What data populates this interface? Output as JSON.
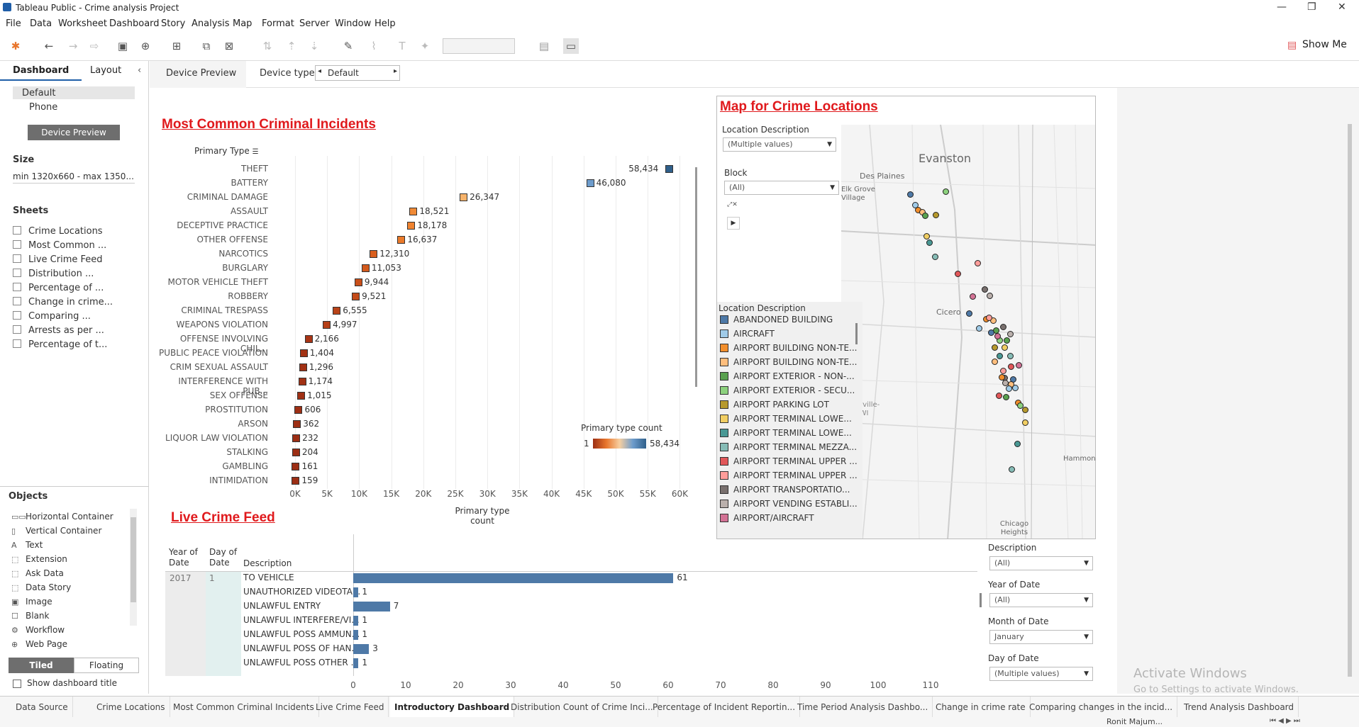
{
  "window": {
    "title": "Tableau Public - Crime analysis Project"
  },
  "menu": [
    "File",
    "Data",
    "Worksheet",
    "Dashboard",
    "Story",
    "Analysis",
    "Map",
    "Format",
    "Server",
    "Window",
    "Help"
  ],
  "toolbar": {
    "show_me": "Show Me"
  },
  "left": {
    "tab_dashboard": "Dashboard",
    "tab_layout": "Layout",
    "devices": [
      "Default",
      "Phone"
    ],
    "device_preview_btn": "Device Preview",
    "size_head": "Size",
    "size_value": "min 1320x660 - max 1350...",
    "sheets_head": "Sheets",
    "sheets": [
      "Crime Locations",
      "Most Common ...",
      "Live Crime Feed",
      "Distribution ...",
      "Percentage of ...",
      "Change in crime...",
      "Comparing ...",
      "Arrests as per ...",
      "Percentage of t..."
    ],
    "objects_head": "Objects",
    "objects": [
      "Horizontal Container",
      "Vertical Container",
      "Text",
      "Extension",
      "Ask Data",
      "Data Story",
      "Image",
      "Blank",
      "Workflow",
      "Web Page"
    ],
    "tiled": "Tiled",
    "floating": "Floating",
    "show_title": "Show dashboard title"
  },
  "canvasbar": {
    "device_preview": "Device Preview",
    "device_type_label": "Device type",
    "device_type_value": "Default"
  },
  "chart_data": {
    "type": "bar",
    "title": "Most Common Criminal Incidents",
    "header": "Primary Type",
    "xlabel": "Primary type count",
    "xlim": [
      0,
      63000
    ],
    "xticks": [
      "0K",
      "5K",
      "10K",
      "15K",
      "20K",
      "25K",
      "30K",
      "35K",
      "40K",
      "45K",
      "50K",
      "55K",
      "60K"
    ],
    "categories": [
      "THEFT",
      "BATTERY",
      "CRIMINAL DAMAGE",
      "ASSAULT",
      "DECEPTIVE PRACTICE",
      "OTHER OFFENSE",
      "NARCOTICS",
      "BURGLARY",
      "MOTOR VEHICLE THEFT",
      "ROBBERY",
      "CRIMINAL TRESPASS",
      "WEAPONS VIOLATION",
      "OFFENSE INVOLVING CHIL...",
      "PUBLIC PEACE VIOLATION",
      "CRIM SEXUAL ASSAULT",
      "INTERFERENCE WITH PUB...",
      "SEX OFFENSE",
      "PROSTITUTION",
      "ARSON",
      "LIQUOR LAW VIOLATION",
      "STALKING",
      "GAMBLING",
      "INTIMIDATION"
    ],
    "values": [
      58434,
      46080,
      26347,
      18521,
      18178,
      16637,
      12310,
      11053,
      9944,
      9521,
      6555,
      4997,
      2166,
      1404,
      1296,
      1174,
      1015,
      606,
      362,
      232,
      204,
      161,
      159
    ],
    "labels": [
      "58,434",
      "46,080",
      "26,347",
      "18,521",
      "18,178",
      "16,637",
      "12,310",
      "11,053",
      "9,944",
      "9,521",
      "6,555",
      "4,997",
      "2,166",
      "1,404",
      "1,296",
      "1,174",
      "1,015",
      "606",
      "362",
      "232",
      "204",
      "161",
      "159"
    ],
    "colors": [
      "#2f5f8a",
      "#6d9ccc",
      "#f7b36b",
      "#f08a36",
      "#ef8330",
      "#ea7a2a",
      "#d95f1e",
      "#d35a1c",
      "#c84f1a",
      "#c44b19",
      "#b94318",
      "#b53f17",
      "#a83515",
      "#a33214",
      "#a23114",
      "#a13114",
      "#a03014",
      "#9e2f14",
      "#9d2f14",
      "#9c2e14",
      "#9c2e14",
      "#9c2e14",
      "#9c2e14"
    ],
    "legend": {
      "title": "Primary type count",
      "min": "1",
      "max": "58,434"
    }
  },
  "map": {
    "title": "Map for Crime Locations",
    "loc_desc_label": "Location Description",
    "loc_desc_value": "(Multiple values)",
    "block_label": "Block",
    "block_value": "(All)",
    "places": [
      "Evanston",
      "Des Plaines",
      "Elk Grove Village",
      "Cicero",
      "Naperville-IL-IN-WI",
      "Hammond",
      "Chicago Heights"
    ],
    "legend_title": "Location Description",
    "legend": [
      {
        "label": "ABANDONED BUILDING",
        "color": "#4e79a7"
      },
      {
        "label": "AIRCRAFT",
        "color": "#a0cbe8"
      },
      {
        "label": "AIRPORT BUILDING NON-TE...",
        "color": "#f28e2b"
      },
      {
        "label": "AIRPORT BUILDING NON-TE...",
        "color": "#ffbe7d"
      },
      {
        "label": "AIRPORT EXTERIOR - NON-...",
        "color": "#59a14f"
      },
      {
        "label": "AIRPORT EXTERIOR - SECU...",
        "color": "#8cd17d"
      },
      {
        "label": "AIRPORT PARKING LOT",
        "color": "#b6992d"
      },
      {
        "label": "AIRPORT TERMINAL LOWE...",
        "color": "#f1ce63"
      },
      {
        "label": "AIRPORT TERMINAL LOWE...",
        "color": "#499894"
      },
      {
        "label": "AIRPORT TERMINAL MEZZA...",
        "color": "#86bcb6"
      },
      {
        "label": "AIRPORT TERMINAL UPPER ...",
        "color": "#e15759"
      },
      {
        "label": "AIRPORT TERMINAL UPPER ...",
        "color": "#ff9d9a"
      },
      {
        "label": "AIRPORT TRANSPORTATIO...",
        "color": "#79706e"
      },
      {
        "label": "AIRPORT VENDING ESTABLI...",
        "color": "#bab0ac"
      },
      {
        "label": "AIRPORT/AIRCRAFT",
        "color": "#d37295"
      }
    ]
  },
  "feed": {
    "title": "Live Crime Feed",
    "col_year": "Year of Date",
    "col_day": "Day of Date",
    "col_desc": "Description",
    "year": "2017",
    "day": "1",
    "rows": [
      {
        "desc": "TO VEHICLE",
        "value": 61,
        "label": "61"
      },
      {
        "desc": "UNAUTHORIZED VIDEOTA...",
        "value": 1,
        "label": "1"
      },
      {
        "desc": "UNLAWFUL ENTRY",
        "value": 7,
        "label": "7"
      },
      {
        "desc": "UNLAWFUL INTERFERE/VI...",
        "value": 1,
        "label": "1"
      },
      {
        "desc": "UNLAWFUL POSS AMMUN...",
        "value": 1,
        "label": "1"
      },
      {
        "desc": "UNLAWFUL POSS OF HAN...",
        "value": 3,
        "label": "3"
      },
      {
        "desc": "UNLAWFUL POSS OTHER ...",
        "value": 1,
        "label": "1"
      }
    ],
    "xticks": [
      "0",
      "10",
      "20",
      "30",
      "40",
      "50",
      "60",
      "70",
      "80",
      "90",
      "100",
      "110"
    ],
    "xmax": 115
  },
  "filters": [
    {
      "label": "Description",
      "value": "(All)"
    },
    {
      "label": "Year of Date",
      "value": "(All)"
    },
    {
      "label": "Month of Date",
      "value": "January"
    },
    {
      "label": "Day of Date",
      "value": "(Multiple values)"
    }
  ],
  "watermark": {
    "line1": "Activate Windows",
    "line2": "Go to Settings to activate Windows."
  },
  "bottom_tabs": [
    "Data Source",
    "Crime Locations",
    "Most Common Criminal Incidents",
    "Live Crime Feed",
    "Introductory Dashboard",
    "Distribution Count of Crime Inci...",
    "Percentage of Incident Reportin...",
    "Time Period Analysis Dashbo...",
    "Change in crime rate",
    "Comparing changes in the incid...",
    "Trend Analysis Dashboard"
  ],
  "user": "Ronit Majum..."
}
